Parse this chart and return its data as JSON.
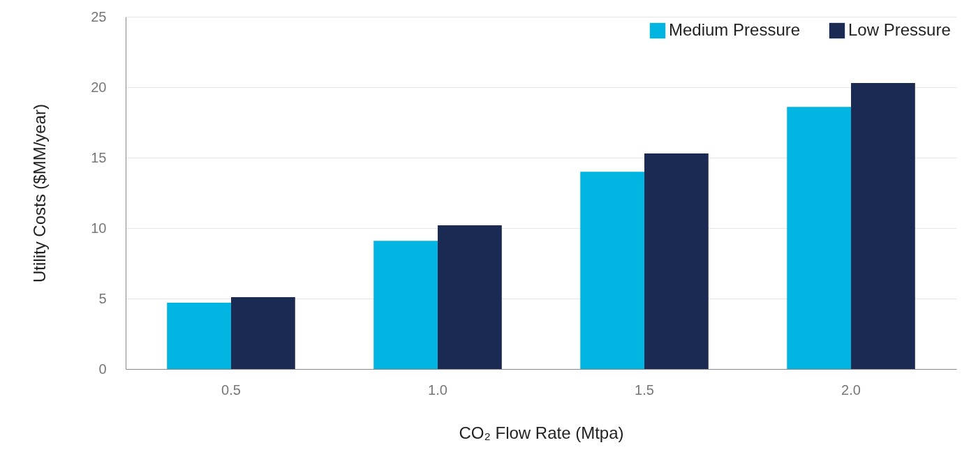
{
  "chart_data": {
    "type": "bar",
    "xlabel": "CO₂ Flow Rate (Mtpa)",
    "ylabel": "Utility Costs ($MM/year)",
    "categories": [
      "0.5",
      "1.0",
      "1.5",
      "2.0"
    ],
    "series": [
      {
        "name": "Medium Pressure",
        "color": "#00b5e2",
        "values": [
          4.7,
          9.1,
          14.0,
          18.6
        ]
      },
      {
        "name": "Low Pressure",
        "color": "#1b2a52",
        "values": [
          5.1,
          10.2,
          15.3,
          20.3
        ]
      }
    ],
    "ylim": [
      0,
      25
    ],
    "yticks": [
      0,
      5,
      10,
      15,
      20,
      25
    ],
    "grid": "y",
    "legend": "top right"
  }
}
